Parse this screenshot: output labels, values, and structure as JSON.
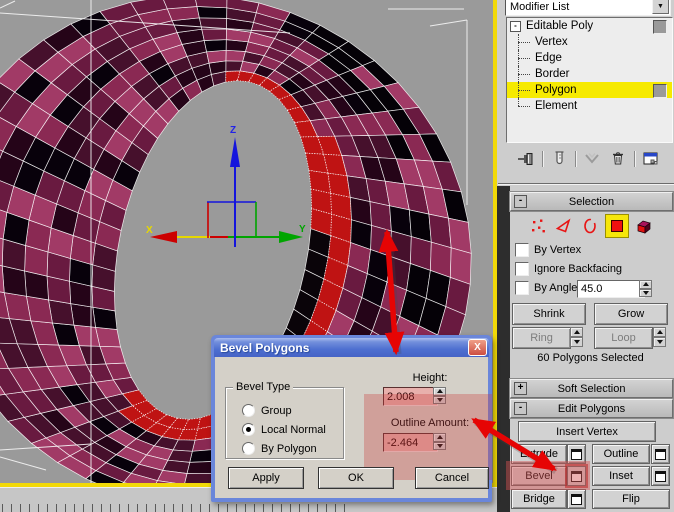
{
  "viewport": {
    "axis_x": "X",
    "axis_y": "Y",
    "axis_z": "Z"
  },
  "panel": {
    "modifier_list_label": "Modifier List",
    "stack_items": [
      {
        "label": "Editable Poly",
        "level": 0,
        "expand": "-",
        "swatch": true,
        "active": false
      },
      {
        "label": "Vertex",
        "level": 1,
        "swatch": false,
        "active": false
      },
      {
        "label": "Edge",
        "level": 1,
        "swatch": false,
        "active": false
      },
      {
        "label": "Border",
        "level": 1,
        "swatch": false,
        "active": false
      },
      {
        "label": "Polygon",
        "level": 1,
        "swatch": true,
        "active": true
      },
      {
        "label": "Element",
        "level": 1,
        "swatch": false,
        "active": false,
        "last": true
      }
    ],
    "stack_tool_icons": [
      "pin-stack",
      "show-end-result",
      "make-unique",
      "remove-modifier",
      "configure-modifier-sets"
    ],
    "selection": {
      "title": "Selection",
      "collapse_glyph": "-",
      "subobject_icons": [
        "vertex",
        "edge",
        "border",
        "polygon",
        "element"
      ],
      "active_subobject": "polygon",
      "by_vertex_label": "By Vertex",
      "ignore_backfacing_label": "Ignore Backfacing",
      "by_angle_label": "By Angle:",
      "by_angle_value": "45.0",
      "shrink_label": "Shrink",
      "grow_label": "Grow",
      "ring_label": "Ring",
      "loop_label": "Loop",
      "status": "60 Polygons Selected"
    },
    "soft_selection": {
      "title": "Soft Selection",
      "collapse_glyph": "+"
    },
    "edit_polygons": {
      "title": "Edit Polygons",
      "collapse_glyph": "-",
      "insert_vertex_label": "Insert Vertex",
      "extrude_label": "Extrude",
      "outline_label": "Outline",
      "bevel_label": "Bevel",
      "inset_label": "Inset",
      "bridge_label": "Bridge",
      "flip_label": "Flip"
    }
  },
  "dialog": {
    "title": "Bevel Polygons",
    "close_glyph": "X",
    "group_title": "Bevel Type",
    "options": [
      {
        "label": "Group",
        "selected": false
      },
      {
        "label": "Local Normal",
        "selected": true
      },
      {
        "label": "By Polygon",
        "selected": false
      }
    ],
    "height_label": "Height:",
    "height_value": "2.008",
    "outline_label": "Outline Amount:",
    "outline_value": "-2.464",
    "apply_label": "Apply",
    "ok_label": "OK",
    "cancel_label": "Cancel"
  },
  "colors": {
    "viewport_bg": "#9a9a9a",
    "active_viewport_border": "#f2d908",
    "stack_highlight": "#f6ea00",
    "selected_faces_red": "#bf1313",
    "annotation_arrow_red": "#e60404",
    "torus_pink": "#8a2953",
    "dialog_title_blue": "#4e6fd0"
  }
}
